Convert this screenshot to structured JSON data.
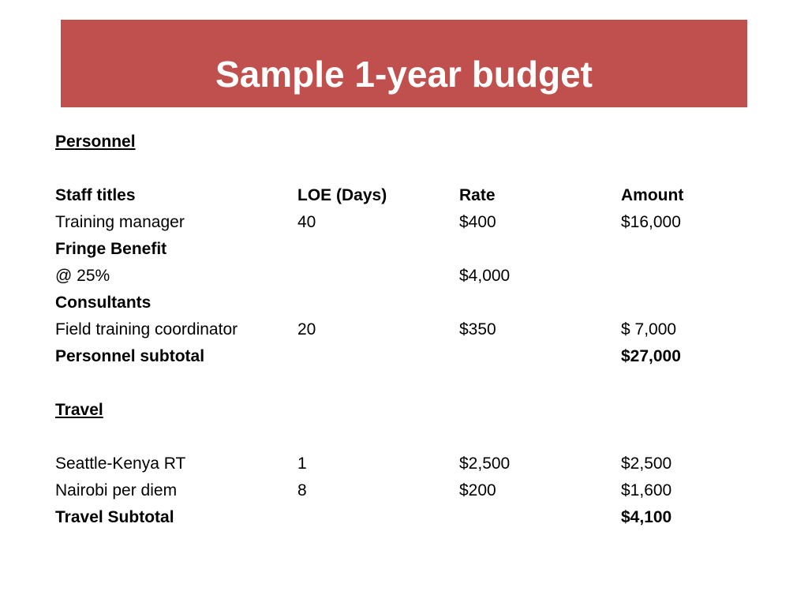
{
  "title": "Sample 1-year budget",
  "personnel": {
    "heading": "Personnel",
    "columns": [
      "Staff titles",
      "LOE (Days)",
      "Rate",
      "Amount"
    ],
    "training_manager": [
      "Training manager",
      "40",
      "$400",
      "$16,000"
    ],
    "fringe_label": "Fringe Benefit",
    "fringe_row": [
      "@ 25%",
      "$4,000"
    ],
    "consultants_label": "Consultants",
    "field_coordinator": [
      "Field training coordinator",
      "20",
      "$350",
      "$ 7,000"
    ],
    "subtotal": [
      "Personnel subtotal",
      "$27,000"
    ]
  },
  "travel": {
    "heading": "Travel",
    "seattle_kenya": [
      "Seattle-Kenya RT",
      "1",
      "$2,500",
      "$2,500"
    ],
    "nairobi_per_diem": [
      "Nairobi per diem",
      "8",
      "$200",
      "$1,600"
    ],
    "subtotal": [
      "Travel Subtotal",
      "$4,100"
    ]
  }
}
